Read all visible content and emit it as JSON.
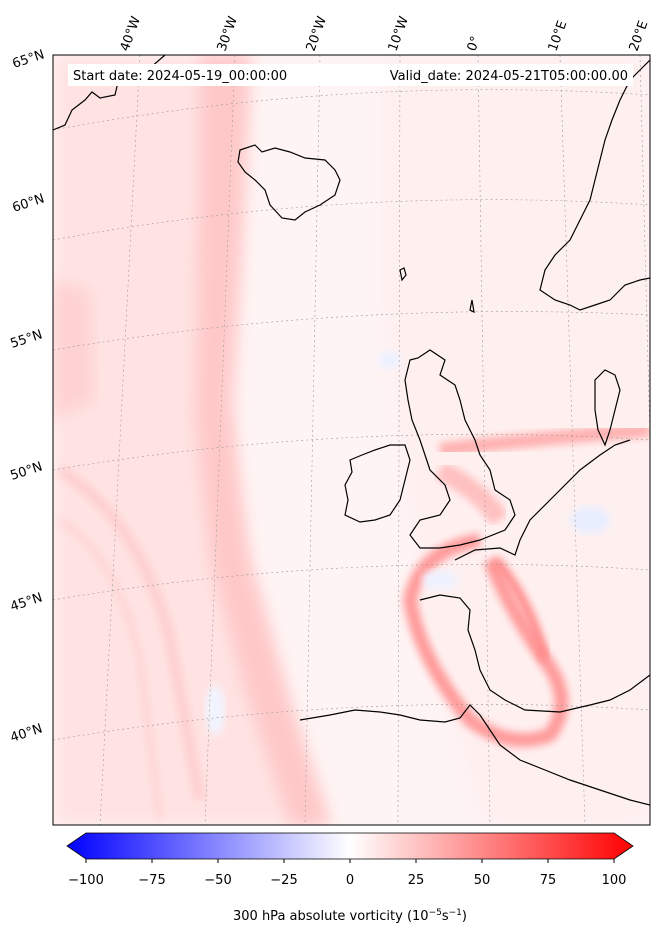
{
  "map": {
    "start_date": "Start date: 2024-05-19_00:00:00",
    "valid_date": "Valid_date: 2024-05-21T05:00:00.00",
    "longitude_labels": [
      "40°W",
      "30°W",
      "20°W",
      "10°W",
      "0°",
      "10°E",
      "20°E"
    ],
    "latitude_labels": [
      "65°N",
      "60°N",
      "55°N",
      "50°N",
      "45°N",
      "40°N"
    ],
    "field_colors": {
      "land_coast": "#000000",
      "max_positive": "#ff0000",
      "max_negative": "#0000ff"
    }
  },
  "colorbar": {
    "title": "300 hPa absolute vorticity (10",
    "title_exp1": "−5",
    "title_mid": "s",
    "title_exp2": "−1",
    "title_end": ")",
    "min": -100,
    "max": 100,
    "tick_values": [
      -100,
      -75,
      -50,
      -25,
      0,
      25,
      50,
      75,
      100
    ],
    "tick_labels": [
      "−100",
      "−75",
      "−50",
      "−25",
      "0",
      "25",
      "50",
      "75",
      "100"
    ]
  }
}
